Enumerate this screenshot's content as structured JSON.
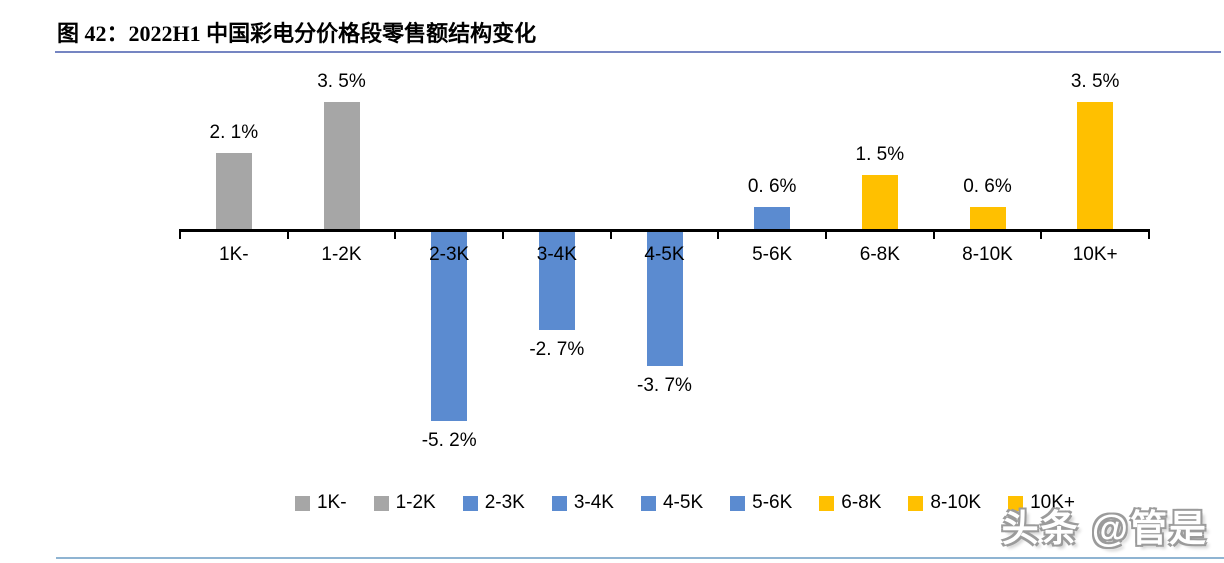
{
  "page": {
    "figure_title": "图 42：2022H1 中国彩电分价格段零售额结构变化",
    "watermark": "头条 @管是",
    "title_rule_color": "#7585C2",
    "bottom_rule_color": "#8FB4D2"
  },
  "chart_data": {
    "type": "bar",
    "title": "图 42：2022H1 中国彩电分价格段零售额结构变化",
    "categories": [
      "1K-",
      "1-2K",
      "2-3K",
      "3-4K",
      "4-5K",
      "5-6K",
      "6-8K",
      "8-10K",
      "10K+"
    ],
    "values": [
      2.1,
      3.5,
      -5.2,
      -2.7,
      -3.7,
      0.6,
      1.5,
      0.6,
      3.5
    ],
    "value_labels": [
      "2. 1%",
      "3. 5%",
      "-5. 2%",
      "-2. 7%",
      "-3. 7%",
      "0. 6%",
      "1. 5%",
      "0. 6%",
      "3. 5%"
    ],
    "bar_colors": [
      "#A6A6A6",
      "#A6A6A6",
      "#5B8BD0",
      "#5B8BD0",
      "#5B8BD0",
      "#5B8BD0",
      "#FFC000",
      "#FFC000",
      "#FFC000"
    ],
    "unit": "%",
    "ylim": [
      -6,
      4
    ],
    "grid": false,
    "axis_color": "#000000",
    "legend_position": "bottom",
    "legend": [
      {
        "label": "1K-",
        "color": "#A6A6A6"
      },
      {
        "label": "1-2K",
        "color": "#A6A6A6"
      },
      {
        "label": "2-3K",
        "color": "#5B8BD0"
      },
      {
        "label": "3-4K",
        "color": "#5B8BD0"
      },
      {
        "label": "4-5K",
        "color": "#5B8BD0"
      },
      {
        "label": "5-6K",
        "color": "#5B8BD0"
      },
      {
        "label": "6-8K",
        "color": "#FFC000"
      },
      {
        "label": "8-10K",
        "color": "#FFC000"
      },
      {
        "label": "10K+",
        "color": "#FFC000"
      }
    ]
  }
}
